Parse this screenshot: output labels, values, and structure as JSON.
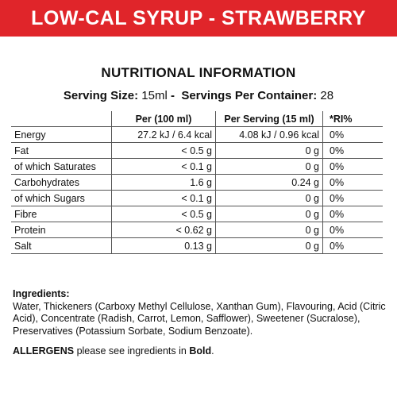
{
  "banner": {
    "title": "LOW-CAL SYRUP - STRAWBERRY",
    "color": "#e0252a"
  },
  "section_title": "NUTRITIONAL INFORMATION",
  "serving": {
    "size_label": "Serving Size:",
    "size_value": "15ml",
    "separator": " - ",
    "per_container_label": "Servings Per Container:",
    "per_container_value": "28"
  },
  "table": {
    "headers": [
      "",
      "Per (100 ml)",
      "Per Serving (15 ml)",
      "*RI%"
    ],
    "rows": [
      [
        "Energy",
        "27.2 kJ / 6.4 kcal",
        "4.08 kJ / 0.96 kcal",
        "0%"
      ],
      [
        "Fat",
        "< 0.5 g",
        "0 g",
        "0%"
      ],
      [
        "of which Saturates",
        "< 0.1 g",
        "0 g",
        "0%"
      ],
      [
        "Carbohydrates",
        "1.6 g",
        "0.24 g",
        "0%"
      ],
      [
        "of which Sugars",
        "< 0.1 g",
        "0 g",
        "0%"
      ],
      [
        "Fibre",
        "< 0.5 g",
        "0 g",
        "0%"
      ],
      [
        "Protein",
        "< 0.62 g",
        "0 g",
        "0%"
      ],
      [
        "Salt",
        "0.13 g",
        "0 g",
        "0%"
      ]
    ]
  },
  "ingredients": {
    "heading": "Ingredients:",
    "text": "Water, Thickeners (Carboxy Methyl Cellulose, Xanthan Gum), Flavouring, Acid (Citric Acid), Concentrate (Radish, Carrot, Lemon, Safflower), Sweetener (Sucralose), Preservatives (Potassium Sorbate, Sodium Benzoate)."
  },
  "allergens": {
    "label": "ALLERGENS",
    "text_before": " please see ingredients in ",
    "bold_word": "Bold",
    "text_after": "."
  }
}
